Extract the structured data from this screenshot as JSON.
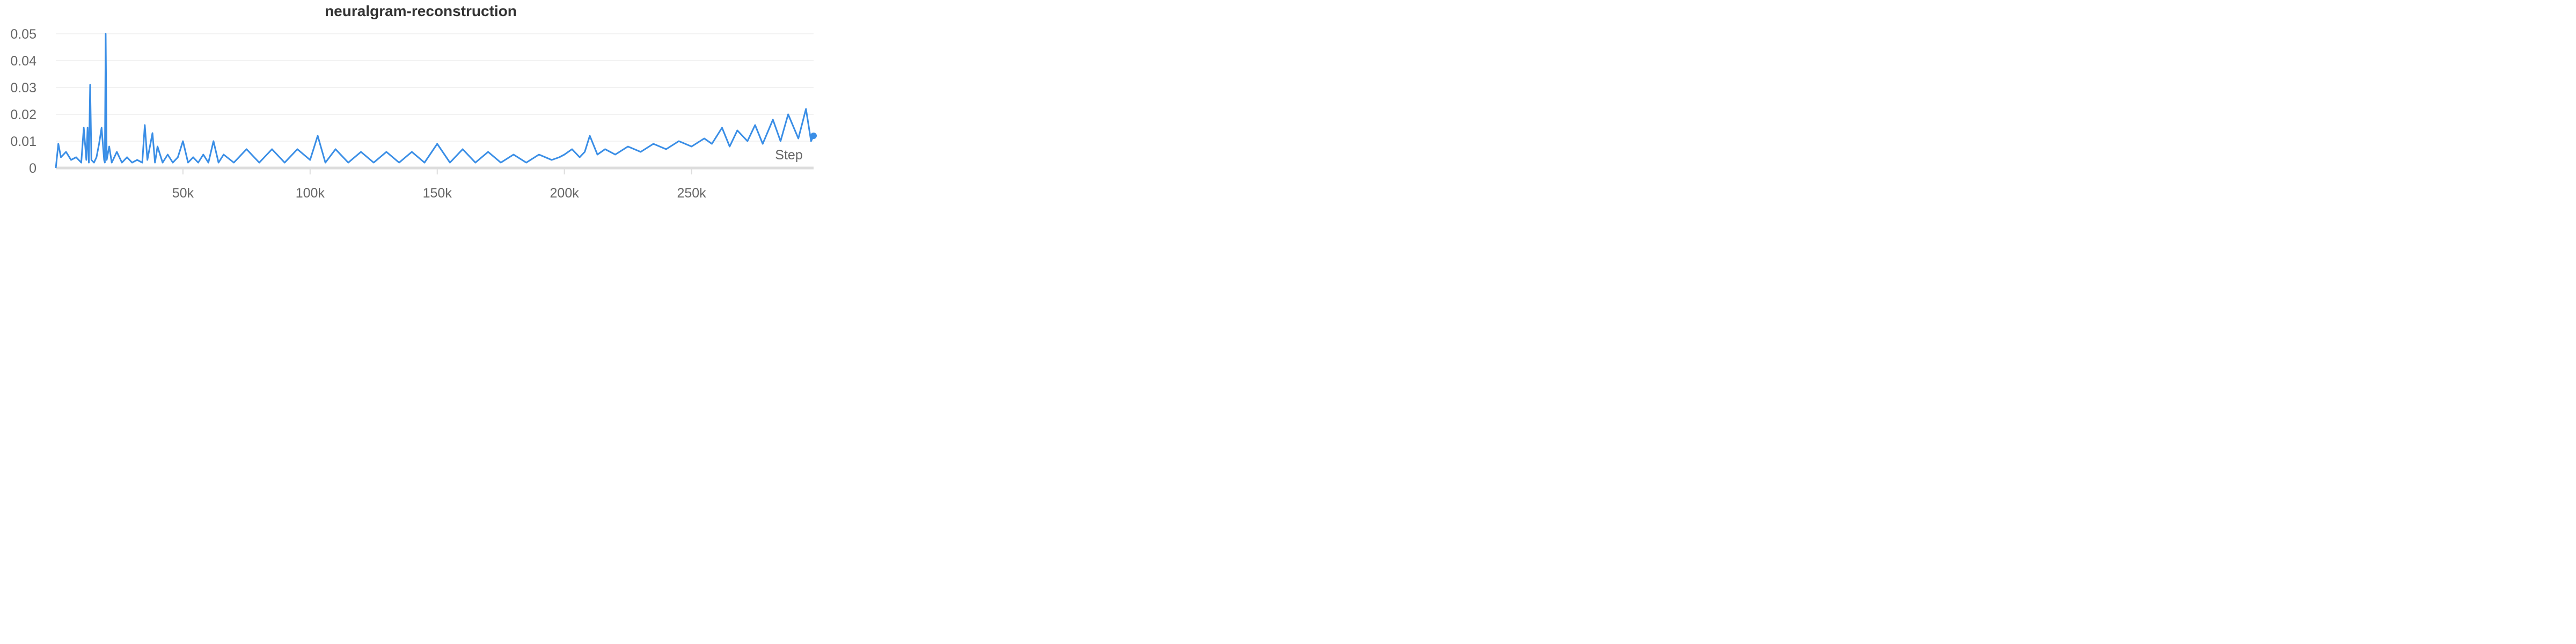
{
  "chart_data": {
    "type": "line",
    "title": "neuralgram-reconstruction",
    "xlabel": "Step",
    "ylabel": "",
    "xlim": [
      0,
      298000
    ],
    "ylim": [
      0,
      0.05
    ],
    "x_ticks": [
      50000,
      100000,
      150000,
      200000,
      250000
    ],
    "x_tick_labels": [
      "50k",
      "100k",
      "150k",
      "200k",
      "250k"
    ],
    "y_ticks": [
      0,
      0.01,
      0.02,
      0.03,
      0.04,
      0.05
    ],
    "y_tick_labels": [
      "0",
      "0.01",
      "0.02",
      "0.03",
      "0.04",
      "0.05"
    ],
    "grid": true,
    "legend": "none",
    "colors": {
      "line": "#3a8ee6",
      "grid": "#e6e6e6",
      "axis": "#dddddd",
      "title": "#333333",
      "tick": "#666666"
    },
    "series": [
      {
        "x": [
          0,
          1000,
          2000,
          4000,
          6000,
          8000,
          10000,
          11000,
          12000,
          12500,
          13000,
          13500,
          14000,
          15000,
          16000,
          17000,
          18000,
          19000,
          19300,
          19600,
          20000,
          21000,
          22000,
          24000,
          26000,
          28000,
          30000,
          32000,
          34000,
          35000,
          36000,
          38000,
          39000,
          40000,
          42000,
          44000,
          46000,
          48000,
          50000,
          52000,
          54000,
          56000,
          58000,
          60000,
          62000,
          64000,
          66000,
          70000,
          75000,
          80000,
          85000,
          90000,
          95000,
          100000,
          103000,
          106000,
          110000,
          115000,
          120000,
          125000,
          130000,
          135000,
          140000,
          145000,
          150000,
          155000,
          160000,
          165000,
          170000,
          175000,
          180000,
          185000,
          190000,
          195000,
          198000,
          200000,
          203000,
          206000,
          208000,
          210000,
          213000,
          216000,
          220000,
          225000,
          230000,
          235000,
          240000,
          245000,
          250000,
          255000,
          258000,
          262000,
          265000,
          268000,
          272000,
          275000,
          278000,
          282000,
          285000,
          288000,
          292000,
          295000,
          297000,
          298000
        ],
        "y": [
          0,
          0.009,
          0.004,
          0.006,
          0.003,
          0.004,
          0.002,
          0.015,
          0.003,
          0.015,
          0.002,
          0.031,
          0.003,
          0.002,
          0.004,
          0.009,
          0.015,
          0.003,
          0.002,
          0.05,
          0.003,
          0.008,
          0.002,
          0.006,
          0.002,
          0.004,
          0.002,
          0.003,
          0.002,
          0.016,
          0.003,
          0.013,
          0.002,
          0.008,
          0.002,
          0.005,
          0.002,
          0.004,
          0.01,
          0.002,
          0.004,
          0.002,
          0.005,
          0.002,
          0.01,
          0.002,
          0.005,
          0.002,
          0.007,
          0.002,
          0.007,
          0.002,
          0.007,
          0.003,
          0.012,
          0.002,
          0.007,
          0.002,
          0.006,
          0.002,
          0.006,
          0.002,
          0.006,
          0.002,
          0.009,
          0.002,
          0.007,
          0.002,
          0.006,
          0.002,
          0.005,
          0.002,
          0.005,
          0.003,
          0.004,
          0.005,
          0.007,
          0.004,
          0.006,
          0.012,
          0.005,
          0.007,
          0.005,
          0.008,
          0.006,
          0.009,
          0.007,
          0.01,
          0.008,
          0.011,
          0.009,
          0.015,
          0.008,
          0.014,
          0.01,
          0.016,
          0.009,
          0.018,
          0.01,
          0.02,
          0.011,
          0.022,
          0.01,
          0.012
        ]
      }
    ]
  }
}
